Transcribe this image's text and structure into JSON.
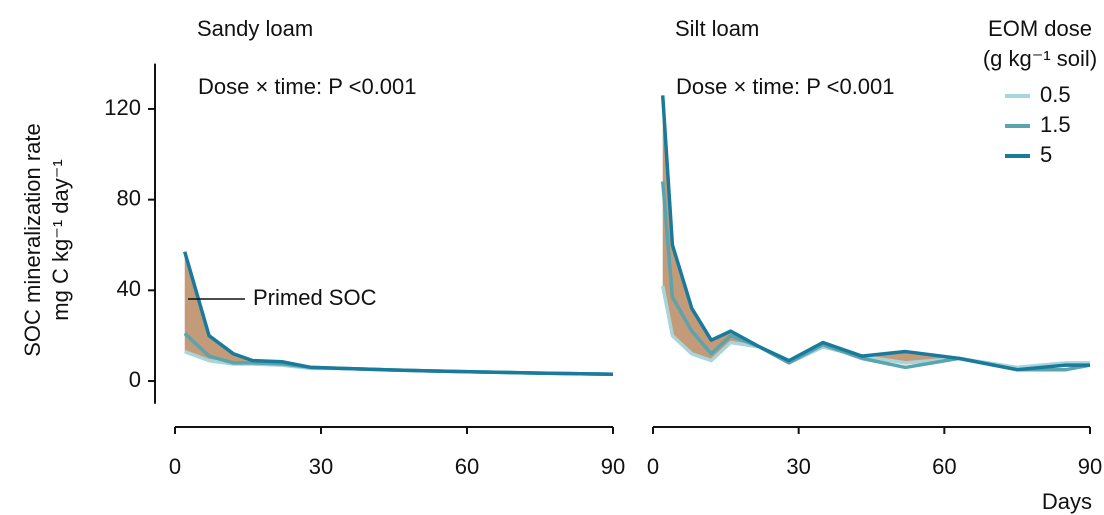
{
  "chart_data": [
    {
      "type": "line",
      "title": "Sandy loam",
      "annotation": "Dose × time: P <0.001",
      "y_label": [
        "SOC mineralization rate",
        "mg C kg⁻¹ day⁻¹"
      ],
      "area_label": "Primed SOC",
      "area_color": "#b88a60",
      "x": [
        2,
        7,
        12,
        16,
        22,
        28,
        35,
        43,
        52,
        63,
        75,
        90
      ],
      "series": [
        {
          "color": "#a8d4dc",
          "values": [
            13,
            9,
            7.5,
            7.5,
            7,
            5.5,
            5.5,
            5,
            4.5,
            4,
            3.5,
            3
          ]
        },
        {
          "color": "#5ba3ad",
          "values": [
            21,
            11,
            8,
            8,
            7.5,
            6,
            5.5,
            5,
            4.5,
            4,
            3.5,
            3
          ]
        },
        {
          "color": "#1a7a9c",
          "values": [
            57,
            20,
            12,
            9,
            8.5,
            6,
            5.5,
            5,
            4.5,
            4,
            3.5,
            3
          ]
        }
      ],
      "xlim": [
        0,
        90
      ],
      "xticks": [
        0,
        30,
        60,
        90
      ],
      "ylim": [
        -10,
        140
      ],
      "yticks": [
        0,
        40,
        80,
        120
      ]
    },
    {
      "type": "line",
      "title": "Silt loam",
      "annotation": "Dose × time: P <0.001",
      "x_label": "Days",
      "legend_title": [
        "EOM dose",
        "(g kg⁻¹ soil)"
      ],
      "area_color": "#b88a60",
      "x": [
        2,
        4,
        8,
        12,
        16,
        22,
        28,
        35,
        43,
        52,
        63,
        75,
        85,
        90
      ],
      "series": [
        {
          "name": "0.5",
          "color": "#a8d4dc",
          "values": [
            42,
            20,
            12,
            9,
            17,
            15,
            8,
            15,
            11,
            8,
            10,
            6,
            8,
            8
          ]
        },
        {
          "name": "1.5",
          "color": "#5ba3ad",
          "values": [
            88,
            37,
            22,
            12,
            20,
            15,
            8,
            16,
            10,
            6,
            10,
            5,
            5,
            7
          ]
        },
        {
          "name": "5",
          "color": "#1a7a9c",
          "values": [
            126,
            60,
            32,
            18,
            22,
            15,
            9,
            17,
            11,
            13,
            10,
            5,
            7,
            7
          ]
        }
      ],
      "xlim": [
        0,
        90
      ],
      "xticks": [
        0,
        30,
        60,
        90
      ],
      "ylim": [
        -10,
        140
      ]
    }
  ]
}
